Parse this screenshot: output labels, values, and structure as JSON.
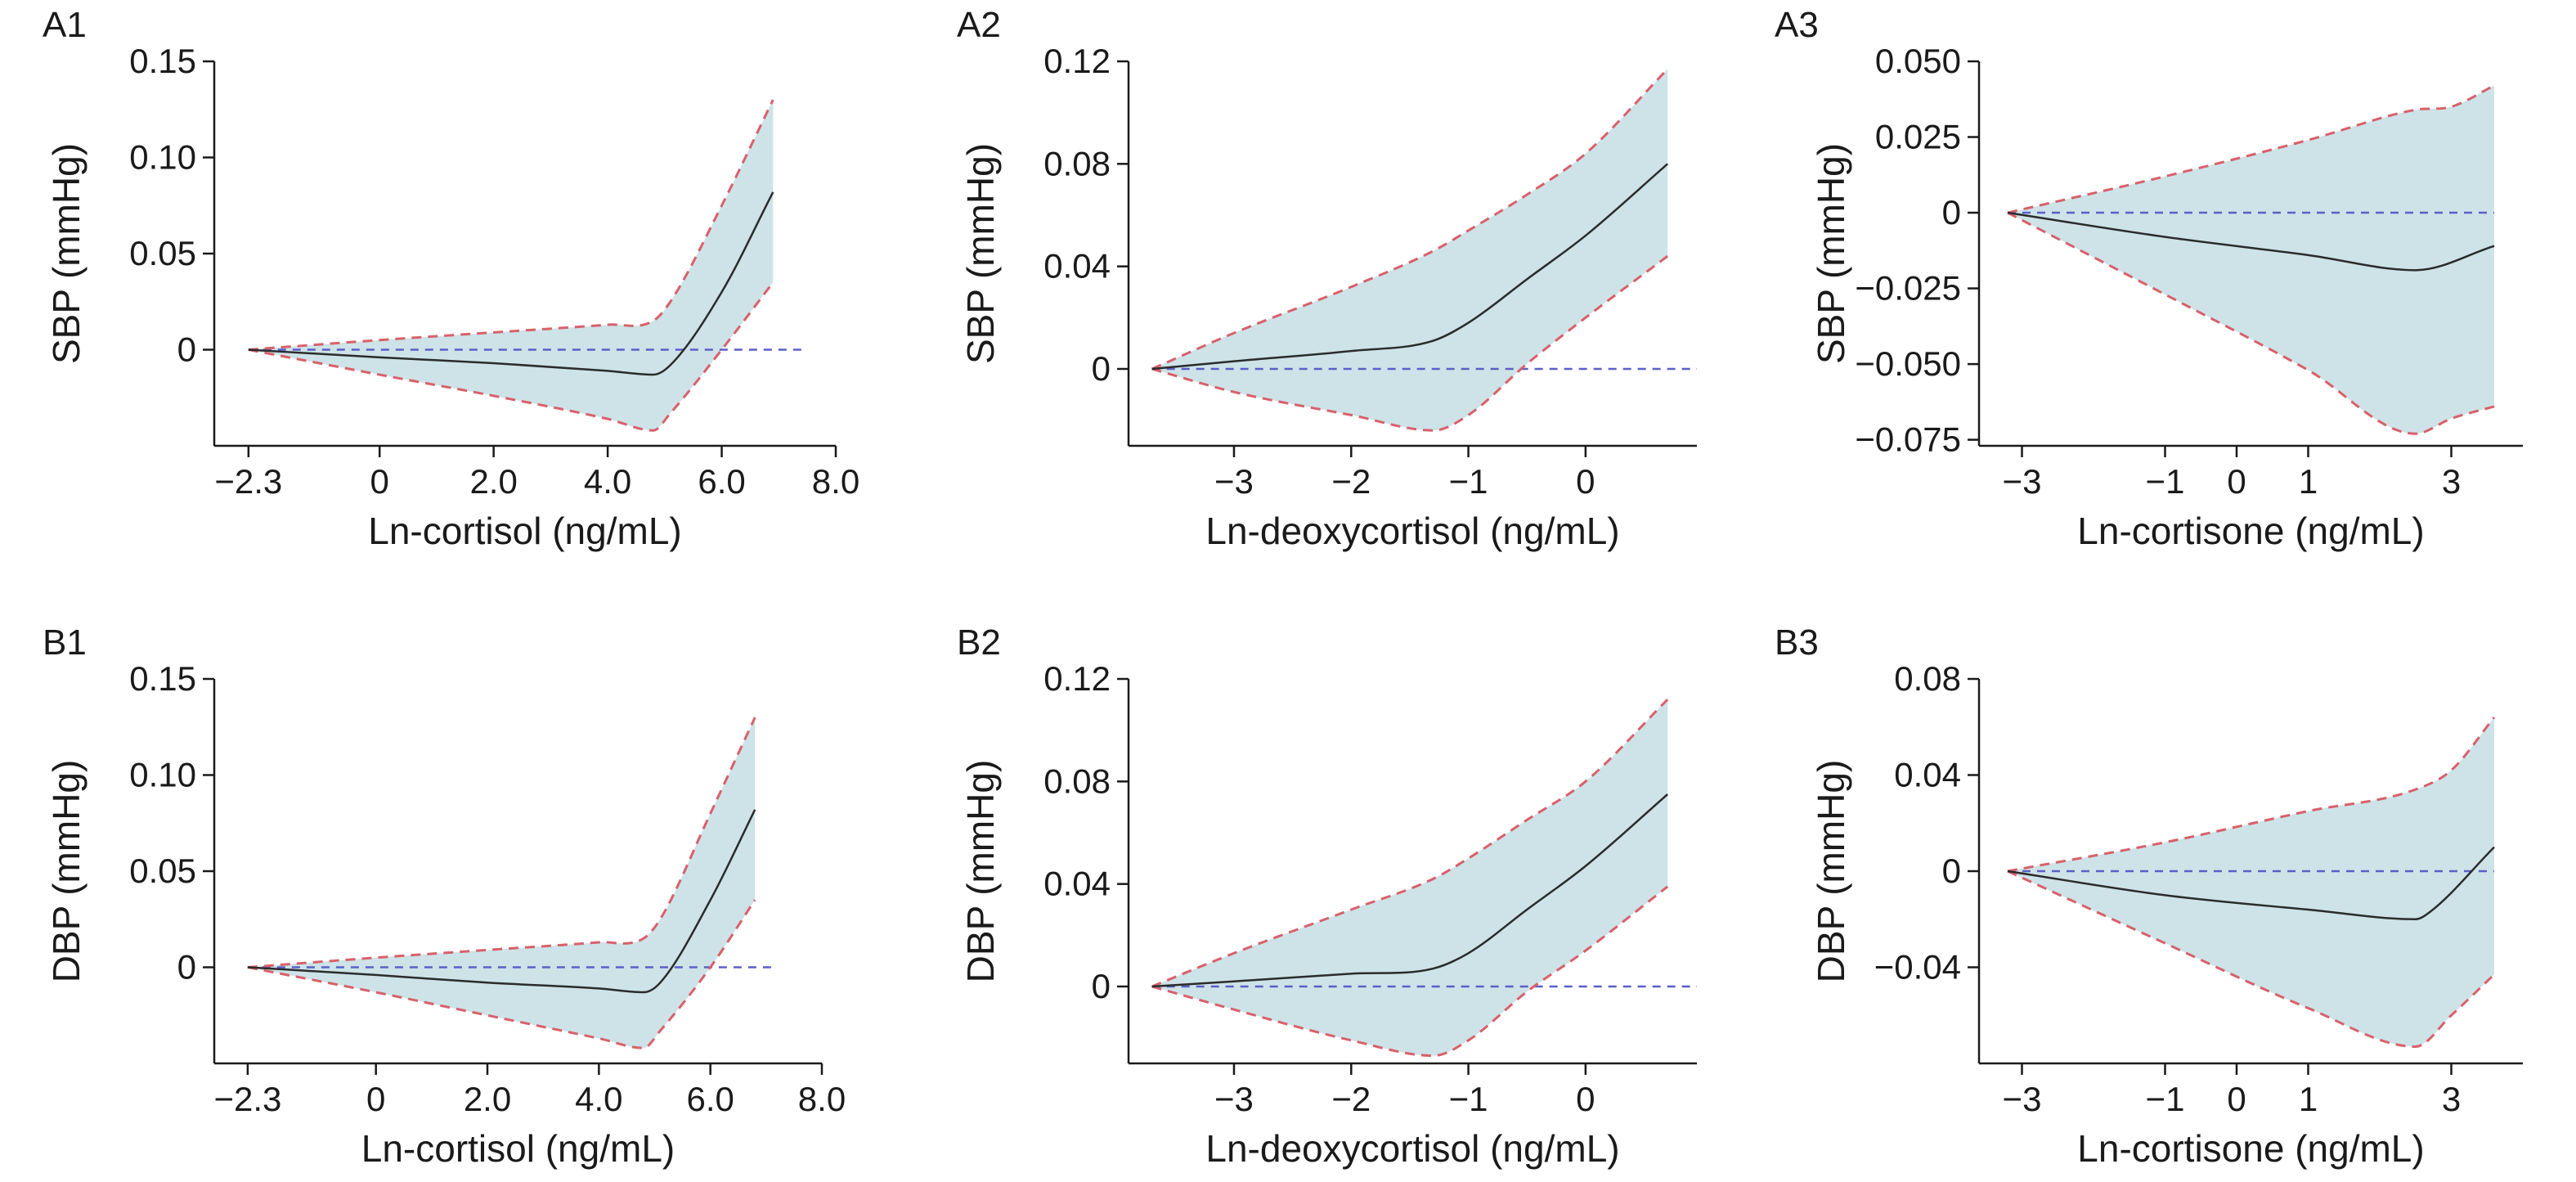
{
  "colors": {
    "band": "#cde3e8",
    "ci": "#d9606a",
    "ref": "#5b5fc7",
    "estimate": "#2b2b2b",
    "axis": "#1a1a1a"
  },
  "chart_data": [
    {
      "id": "A1",
      "label": "A1",
      "type": "line",
      "xlabel": "Ln-cortisol (ng/mL)",
      "ylabel": "SBP (mmHg)",
      "xlim": [
        -2.9,
        8.0
      ],
      "ylim": [
        -0.05,
        0.15
      ],
      "xticks": [
        -2.3,
        0,
        2.0,
        4.0,
        6.0,
        8.0
      ],
      "xtick_labels": [
        "−2.3",
        "0",
        "2.0",
        "4.0",
        "6.0",
        "8.0"
      ],
      "yticks": [
        0,
        0.05,
        0.1,
        0.15
      ],
      "ytick_labels": [
        "0",
        "0.05",
        "0.10",
        "0.15"
      ],
      "reference_y": 0,
      "reference_x_end": 7.4,
      "estimate": {
        "x": [
          -2.3,
          0,
          2.0,
          4.0,
          4.8,
          5.1,
          6.0,
          6.9
        ],
        "y": [
          0,
          -0.004,
          -0.007,
          -0.011,
          -0.013,
          -0.008,
          0.03,
          0.082
        ]
      },
      "upper": {
        "x": [
          -2.3,
          0,
          2.0,
          4.0,
          4.8,
          5.1,
          6.0,
          6.9
        ],
        "y": [
          0,
          0.005,
          0.009,
          0.013,
          0.015,
          0.025,
          0.075,
          0.13
        ]
      },
      "lower": {
        "x": [
          -2.3,
          0,
          2.0,
          4.0,
          4.8,
          5.1,
          6.0,
          6.9
        ],
        "y": [
          0,
          -0.013,
          -0.024,
          -0.036,
          -0.042,
          -0.033,
          0.0,
          0.035
        ]
      }
    },
    {
      "id": "A2",
      "label": "A2",
      "type": "line",
      "xlabel": "Ln-deoxycortisol (ng/mL)",
      "ylabel": "SBP (mmHg)",
      "xlim": [
        -3.9,
        0.95
      ],
      "ylim": [
        -0.03,
        0.12
      ],
      "xticks": [
        -3,
        -2,
        -1,
        0
      ],
      "xtick_labels": [
        "−3",
        "−2",
        "−1",
        "0"
      ],
      "yticks": [
        0,
        0.04,
        0.08,
        0.12
      ],
      "ytick_labels": [
        "0",
        "0.04",
        "0.08",
        "0.12"
      ],
      "reference_y": 0,
      "reference_x_end": 0.95,
      "estimate": {
        "x": [
          -3.7,
          -3.0,
          -2.0,
          -1.3,
          -1.0,
          -0.5,
          0.0,
          0.7
        ],
        "y": [
          0,
          0.003,
          0.007,
          0.011,
          0.018,
          0.035,
          0.052,
          0.08
        ]
      },
      "upper": {
        "x": [
          -3.7,
          -3.0,
          -2.0,
          -1.3,
          -1.0,
          -0.5,
          0.0,
          0.7
        ],
        "y": [
          0,
          0.014,
          0.032,
          0.046,
          0.054,
          0.068,
          0.084,
          0.117
        ]
      },
      "lower": {
        "x": [
          -3.7,
          -3.0,
          -2.0,
          -1.3,
          -1.0,
          -0.5,
          0.0,
          0.7
        ],
        "y": [
          0,
          -0.009,
          -0.018,
          -0.024,
          -0.018,
          0.002,
          0.02,
          0.044
        ]
      }
    },
    {
      "id": "A3",
      "label": "A3",
      "type": "line",
      "xlabel": "Ln-cortisone (ng/mL)",
      "ylabel": "SBP (mmHg)",
      "xlim": [
        -3.6,
        4.0
      ],
      "ylim": [
        -0.077,
        0.05
      ],
      "xticks": [
        -3,
        -1,
        0,
        1,
        3
      ],
      "xtick_labels": [
        "−3",
        "−1",
        "0",
        "1",
        "3"
      ],
      "yticks": [
        -0.075,
        -0.05,
        -0.025,
        0,
        0.025,
        0.05
      ],
      "ytick_labels": [
        "−0.075",
        "−0.050",
        "−0.025",
        "0",
        "0.025",
        "0.050"
      ],
      "reference_y": 0,
      "reference_x_end": 3.6,
      "estimate": {
        "x": [
          -3.2,
          -1.0,
          1.0,
          2.5,
          3.6
        ],
        "y": [
          0,
          -0.008,
          -0.014,
          -0.019,
          -0.011
        ]
      },
      "upper": {
        "x": [
          -3.2,
          -1.0,
          1.0,
          2.5,
          3.0,
          3.6
        ],
        "y": [
          0,
          0.012,
          0.024,
          0.034,
          0.035,
          0.042
        ]
      },
      "lower": {
        "x": [
          -3.2,
          -1.0,
          1.0,
          2.5,
          3.0,
          3.6
        ],
        "y": [
          0,
          -0.027,
          -0.052,
          -0.073,
          -0.068,
          -0.064
        ]
      }
    },
    {
      "id": "B1",
      "label": "B1",
      "type": "line",
      "xlabel": "Ln-cortisol (ng/mL)",
      "ylabel": "DBP (mmHg)",
      "xlim": [
        -2.9,
        8.0
      ],
      "ylim": [
        -0.05,
        0.15
      ],
      "xticks": [
        -2.3,
        0,
        2.0,
        4.0,
        6.0,
        8.0
      ],
      "xtick_labels": [
        "−2.3",
        "0",
        "2.0",
        "4.0",
        "6.0",
        "8.0"
      ],
      "yticks": [
        0,
        0.05,
        0.1,
        0.15
      ],
      "ytick_labels": [
        "0",
        "0.05",
        "0.10",
        "0.15"
      ],
      "reference_y": 0,
      "reference_x_end": 7.2,
      "estimate": {
        "x": [
          -2.3,
          0,
          2.0,
          4.0,
          4.8,
          5.1,
          6.0,
          6.8
        ],
        "y": [
          0,
          -0.004,
          -0.008,
          -0.011,
          -0.013,
          -0.008,
          0.035,
          0.082
        ]
      },
      "upper": {
        "x": [
          -2.3,
          0,
          2.0,
          4.0,
          4.8,
          5.1,
          6.0,
          6.8
        ],
        "y": [
          0,
          0.005,
          0.009,
          0.013,
          0.015,
          0.025,
          0.08,
          0.13
        ]
      },
      "lower": {
        "x": [
          -2.3,
          0,
          2.0,
          4.0,
          4.8,
          5.1,
          6.0,
          6.8
        ],
        "y": [
          0,
          -0.013,
          -0.025,
          -0.037,
          -0.042,
          -0.033,
          0.0,
          0.035
        ]
      }
    },
    {
      "id": "B2",
      "label": "B2",
      "type": "line",
      "xlabel": "Ln-deoxycortisol (ng/mL)",
      "ylabel": "DBP (mmHg)",
      "xlim": [
        -3.9,
        0.95
      ],
      "ylim": [
        -0.03,
        0.12
      ],
      "xticks": [
        -3,
        -2,
        -1,
        0
      ],
      "xtick_labels": [
        "−3",
        "−2",
        "−1",
        "0"
      ],
      "yticks": [
        0,
        0.04,
        0.08,
        0.12
      ],
      "ytick_labels": [
        "0",
        "0.04",
        "0.08",
        "0.12"
      ],
      "reference_y": 0,
      "reference_x_end": 0.95,
      "estimate": {
        "x": [
          -3.7,
          -3.0,
          -2.0,
          -1.3,
          -1.0,
          -0.5,
          0.0,
          0.7
        ],
        "y": [
          0,
          0.002,
          0.005,
          0.007,
          0.013,
          0.03,
          0.047,
          0.075
        ]
      },
      "upper": {
        "x": [
          -3.7,
          -3.0,
          -2.0,
          -1.3,
          -1.0,
          -0.5,
          0.0,
          0.7
        ],
        "y": [
          0,
          0.013,
          0.03,
          0.042,
          0.05,
          0.065,
          0.08,
          0.112
        ]
      },
      "lower": {
        "x": [
          -3.7,
          -3.0,
          -2.0,
          -1.3,
          -1.0,
          -0.5,
          0.0,
          0.7
        ],
        "y": [
          0,
          -0.009,
          -0.021,
          -0.027,
          -0.021,
          -0.002,
          0.014,
          0.039
        ]
      }
    },
    {
      "id": "B3",
      "label": "B3",
      "type": "line",
      "xlabel": "Ln-cortisone (ng/mL)",
      "ylabel": "DBP (mmHg)",
      "xlim": [
        -3.6,
        4.0
      ],
      "ylim": [
        -0.08,
        0.08
      ],
      "xticks": [
        -3,
        -1,
        0,
        1,
        3
      ],
      "xtick_labels": [
        "−3",
        "−1",
        "0",
        "1",
        "3"
      ],
      "yticks": [
        -0.04,
        0,
        0.04,
        0.08
      ],
      "ytick_labels": [
        "−0.04",
        "0",
        "0.04",
        "0.08"
      ],
      "reference_y": 0,
      "reference_x_end": 3.6,
      "estimate": {
        "x": [
          -3.2,
          -1.0,
          1.0,
          2.5,
          2.7,
          3.6
        ],
        "y": [
          0,
          -0.01,
          -0.016,
          -0.02,
          -0.017,
          0.01
        ]
      },
      "upper": {
        "x": [
          -3.2,
          -1.0,
          1.0,
          2.5,
          3.0,
          3.6
        ],
        "y": [
          0,
          0.012,
          0.025,
          0.034,
          0.042,
          0.064
        ]
      },
      "lower": {
        "x": [
          -3.2,
          -1.0,
          1.0,
          2.5,
          3.0,
          3.6
        ],
        "y": [
          0,
          -0.03,
          -0.057,
          -0.073,
          -0.06,
          -0.043
        ]
      }
    }
  ]
}
